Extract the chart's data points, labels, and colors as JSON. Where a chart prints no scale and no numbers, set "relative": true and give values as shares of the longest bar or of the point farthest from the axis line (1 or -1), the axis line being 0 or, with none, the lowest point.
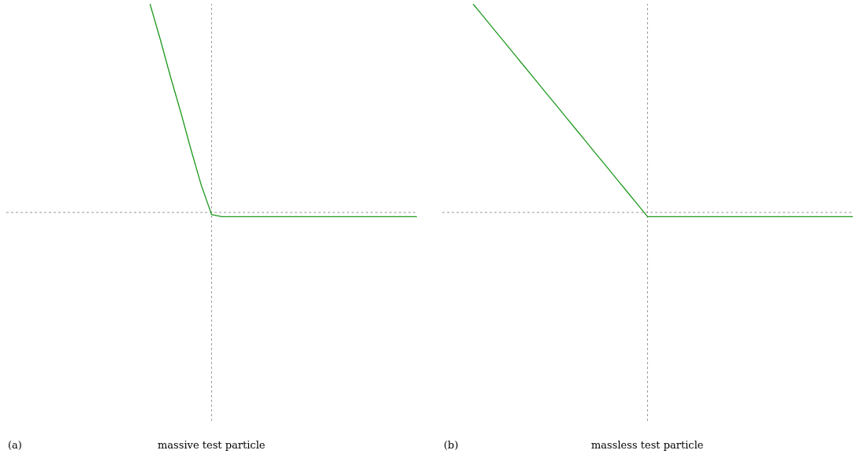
{
  "chart_data": [
    {
      "type": "line",
      "relative": true,
      "title": "massive test particle",
      "annotations": [
        "(a)"
      ],
      "categories": [
        null,
        null,
        null,
        null,
        null,
        null,
        null,
        null,
        null,
        null,
        null,
        null,
        null,
        null,
        null,
        null,
        null,
        null,
        null,
        null,
        null,
        null,
        null,
        null,
        null,
        null,
        null,
        null,
        null,
        null,
        null,
        null,
        null,
        null,
        null,
        null,
        null,
        null,
        null,
        null,
        null
      ],
      "series": [
        {
          "color": "#1f9a1f",
          "values": [
            null,
            null,
            null,
            null,
            null,
            null,
            null,
            null,
            null,
            null,
            null,
            null,
            null,
            null,
            1.0,
            0.83,
            0.65,
            0.48,
            0.3,
            0.13,
            -0.01,
            -0.02,
            -0.02,
            -0.02,
            -0.02,
            -0.02,
            -0.02,
            -0.02,
            -0.02,
            -0.02,
            -0.02,
            -0.02,
            -0.02,
            -0.02,
            -0.02,
            -0.02,
            -0.02,
            -0.02,
            -0.02,
            -0.02,
            -0.02
          ]
        }
      ],
      "grid": false,
      "marker": "none",
      "line_style": "solid"
    },
    {
      "type": "line",
      "relative": true,
      "title": "massless test particle",
      "annotations": [
        "(b)"
      ],
      "categories": [
        null,
        null,
        null,
        null,
        null,
        null,
        null,
        null,
        null,
        null,
        null,
        null,
        null,
        null,
        null,
        null,
        null,
        null,
        null,
        null,
        null,
        null,
        null,
        null,
        null,
        null,
        null,
        null,
        null,
        null,
        null,
        null,
        null,
        null,
        null,
        null,
        null,
        null,
        null,
        null,
        null
      ],
      "series": [
        {
          "color": "#1f9a1f",
          "values": [
            null,
            null,
            null,
            1.0,
            0.94,
            0.88,
            0.82,
            0.76,
            0.7,
            0.64,
            0.58,
            0.52,
            0.46,
            0.4,
            0.34,
            0.28,
            0.22,
            0.16,
            0.1,
            0.04,
            -0.02,
            -0.02,
            -0.02,
            -0.02,
            -0.02,
            -0.02,
            -0.02,
            -0.02,
            -0.02,
            -0.02,
            -0.02,
            -0.02,
            -0.02,
            -0.02,
            -0.02,
            -0.02,
            -0.02,
            -0.02,
            -0.02,
            -0.02,
            -0.02
          ]
        }
      ],
      "grid": false,
      "marker": "none",
      "line_style": "solid"
    }
  ]
}
